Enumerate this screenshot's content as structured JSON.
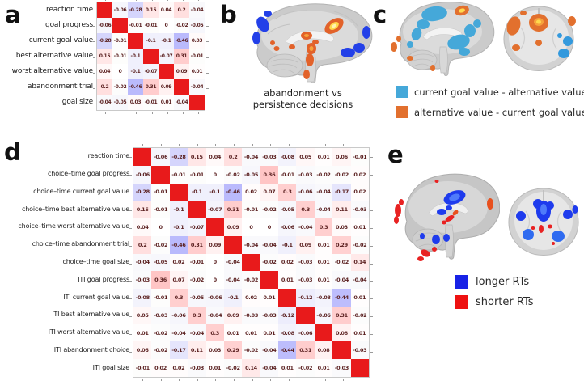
{
  "panels": {
    "a": {
      "label": "a"
    },
    "b": {
      "label": "b",
      "caption": [
        "abandonment vs",
        "persistence decisions"
      ]
    },
    "c": {
      "label": "c",
      "legend": [
        {
          "color": "#45a8d9",
          "label": "current goal value - alternative value"
        },
        {
          "color": "#e2702e",
          "label": "alternative value - current goal value"
        }
      ]
    },
    "d": {
      "label": "d"
    },
    "e": {
      "label": "e",
      "legend": [
        {
          "color": "#1822e6",
          "label": "longer RTs"
        },
        {
          "color": "#ee1111",
          "label": "shorter RTs"
        }
      ]
    }
  },
  "colors": {
    "matrix_diagonal_red": "#e81a1b",
    "matrix_number_text": "#5c2222",
    "brain_gray": "#cbcbcb",
    "blue_activation": "#2340e8",
    "red_activation": "#e82222",
    "cyan_activation": "#45a8d9",
    "orange_activation": "#e2622a",
    "yellow_core": "#ffd94e"
  },
  "chart_data": [
    {
      "type": "heatmap",
      "panel": "a",
      "title": "",
      "categories": [
        "reaction time",
        "goal progress",
        "current goal value",
        "best alternative value",
        "worst alternative value",
        "abandonment trial",
        "goal size"
      ],
      "matrix": [
        [
          null,
          "-0.06",
          "-0.28",
          "0.15",
          "0.04",
          "0.2",
          "-0.04"
        ],
        [
          "-0.06",
          null,
          "-0.01",
          "-0.01",
          "0",
          "-0.02",
          "-0.05"
        ],
        [
          "-0.28",
          "-0.01",
          null,
          "-0.1",
          "-0.1",
          "-0.46",
          "0.03"
        ],
        [
          "0.15",
          "-0.01",
          "-0.1",
          null,
          "-0.07",
          "0.31",
          "-0.01"
        ],
        [
          "0.04",
          "0",
          "-0.1",
          "-0.07",
          null,
          "0.09",
          "0.01"
        ],
        [
          "0.2",
          "-0.02",
          "-0.46",
          "0.31",
          "0.09",
          null,
          "-0.04"
        ],
        [
          "-0.04",
          "-0.05",
          "0.03",
          "-0.01",
          "0.01",
          "-0.04",
          null
        ]
      ],
      "diagonal_value": 1,
      "value_range": [
        -1,
        1
      ],
      "colormap": "blue-white-red",
      "legend_position": "none"
    },
    {
      "type": "heatmap",
      "panel": "d",
      "title": "",
      "categories": [
        "reaction time",
        "choice–time goal progress",
        "choice–time current goal value",
        "choice–time best alternative value",
        "choice–time worst alternative value",
        "choice–time abandonment trial",
        "choice–time goal size",
        "ITI goal progress",
        "ITI current goal value",
        "ITI best alternative value",
        "ITI worst alternative value",
        "ITI abandonment choice",
        "ITI goal size"
      ],
      "matrix": [
        [
          null,
          "-0.06",
          "-0.28",
          "0.15",
          "0.04",
          "0.2",
          "-0.04",
          "-0.03",
          "-0.08",
          "0.05",
          "0.01",
          "0.06",
          "-0.01"
        ],
        [
          "-0.06",
          null,
          "-0.01",
          "-0.01",
          "0",
          "-0.02",
          "-0.05",
          "0.36",
          "-0.01",
          "-0.03",
          "-0.02",
          "-0.02",
          "0.02"
        ],
        [
          "-0.28",
          "-0.01",
          null,
          "-0.1",
          "-0.1",
          "-0.46",
          "0.02",
          "0.07",
          "0.3",
          "-0.06",
          "-0.04",
          "-0.17",
          "0.02"
        ],
        [
          "0.15",
          "-0.01",
          "-0.1",
          null,
          "-0.07",
          "0.31",
          "-0.01",
          "-0.02",
          "-0.05",
          "0.3",
          "-0.04",
          "0.11",
          "-0.03"
        ],
        [
          "0.04",
          "0",
          "-0.1",
          "-0.07",
          null,
          "0.09",
          "0",
          "0",
          "-0.06",
          "-0.04",
          "0.3",
          "0.03",
          "0.01"
        ],
        [
          "0.2",
          "-0.02",
          "-0.46",
          "0.31",
          "0.09",
          null,
          "-0.04",
          "-0.04",
          "-0.1",
          "0.09",
          "0.01",
          "0.29",
          "-0.02"
        ],
        [
          "-0.04",
          "-0.05",
          "0.02",
          "-0.01",
          "0",
          "-0.04",
          null,
          "-0.02",
          "0.02",
          "-0.03",
          "0.01",
          "-0.02",
          "0.14"
        ],
        [
          "-0.03",
          "0.36",
          "0.07",
          "-0.02",
          "0",
          "-0.04",
          "-0.02",
          null,
          "0.01",
          "-0.03",
          "0.01",
          "-0.04",
          "-0.04"
        ],
        [
          "-0.08",
          "-0.01",
          "0.3",
          "-0.05",
          "-0.06",
          "-0.1",
          "0.02",
          "0.01",
          null,
          "-0.12",
          "-0.08",
          "-0.44",
          "0.01"
        ],
        [
          "0.05",
          "-0.03",
          "-0.06",
          "0.3",
          "-0.04",
          "0.09",
          "-0.03",
          "-0.03",
          "-0.12",
          null,
          "-0.06",
          "0.31",
          "-0.02"
        ],
        [
          "0.01",
          "-0.02",
          "-0.04",
          "-0.04",
          "0.3",
          "0.01",
          "0.01",
          "0.01",
          "-0.08",
          "-0.06",
          null,
          "0.08",
          "0.01"
        ],
        [
          "0.06",
          "-0.02",
          "-0.17",
          "0.11",
          "0.03",
          "0.29",
          "-0.02",
          "-0.04",
          "-0.44",
          "0.31",
          "0.08",
          null,
          "-0.03"
        ],
        [
          "-0.01",
          "0.02",
          "0.02",
          "-0.03",
          "0.01",
          "-0.02",
          "0.14",
          "-0.04",
          "0.01",
          "-0.02",
          "0.01",
          "-0.03",
          null
        ]
      ],
      "diagonal_value": 1,
      "value_range": [
        -1,
        1
      ],
      "colormap": "blue-white-red",
      "legend_position": "none"
    }
  ]
}
